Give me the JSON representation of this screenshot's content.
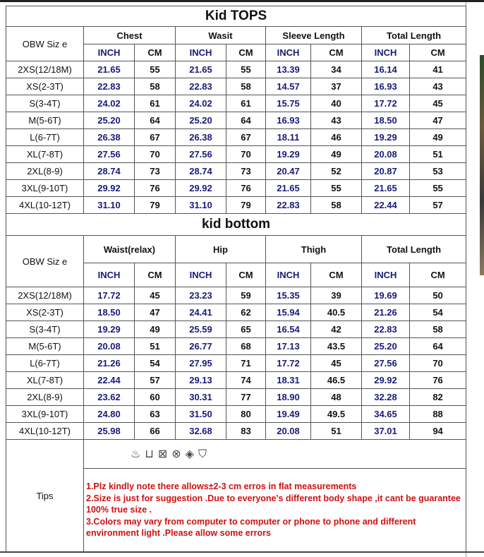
{
  "tops": {
    "title": "Kid TOPS",
    "size_label": "OBW  Siz e",
    "groups": [
      "Chest",
      "Wasit",
      "Sleeve Length",
      "Total Length"
    ],
    "unit_inch": "INCH",
    "unit_cm": "CM",
    "rows": [
      [
        "2XS(12/18M)",
        "21.65",
        "55",
        "21.65",
        "55",
        "13.39",
        "34",
        "16.14",
        "41"
      ],
      [
        "XS(2-3T)",
        "22.83",
        "58",
        "22.83",
        "58",
        "14.57",
        "37",
        "16.93",
        "43"
      ],
      [
        "S(3-4T)",
        "24.02",
        "61",
        "24.02",
        "61",
        "15.75",
        "40",
        "17.72",
        "45"
      ],
      [
        "M(5-6T)",
        "25.20",
        "64",
        "25.20",
        "64",
        "16.93",
        "43",
        "18.50",
        "47"
      ],
      [
        "L(6-7T)",
        "26.38",
        "67",
        "26.38",
        "67",
        "18.11",
        "46",
        "19.29",
        "49"
      ],
      [
        "XL(7-8T)",
        "27.56",
        "70",
        "27.56",
        "70",
        "19.29",
        "49",
        "20.08",
        "51"
      ],
      [
        "2XL(8-9)",
        "28.74",
        "73",
        "28.74",
        "73",
        "20.47",
        "52",
        "20.87",
        "53"
      ],
      [
        "3XL(9-10T)",
        "29.92",
        "76",
        "29.92",
        "76",
        "21.65",
        "55",
        "21.65",
        "55"
      ],
      [
        "4XL(10-12T)",
        "31.10",
        "79",
        "31.10",
        "79",
        "22.83",
        "58",
        "22.44",
        "57"
      ]
    ]
  },
  "bottoms": {
    "title": "kid bottom",
    "size_label": "OBW  Siz e",
    "groups": [
      "Waist(relax)",
      "Hip",
      "Thigh",
      "Total Length"
    ],
    "unit_inch": "INCH",
    "unit_cm": "CM",
    "rows": [
      [
        "2XS(12/18M)",
        "17.72",
        "45",
        "23.23",
        "59",
        "15.35",
        "39",
        "19.69",
        "50"
      ],
      [
        "XS(2-3T)",
        "18.50",
        "47",
        "24.41",
        "62",
        "15.94",
        "40.5",
        "21.26",
        "54"
      ],
      [
        "S(3-4T)",
        "19.29",
        "49",
        "25.59",
        "65",
        "16.54",
        "42",
        "22.83",
        "58"
      ],
      [
        "M(5-6T)",
        "20.08",
        "51",
        "26.77",
        "68",
        "17.13",
        "43.5",
        "25.20",
        "64"
      ],
      [
        "L(6-7T)",
        "21.26",
        "54",
        "27.95",
        "71",
        "17.72",
        "45",
        "27.56",
        "70"
      ],
      [
        "XL(7-8T)",
        "22.44",
        "57",
        "29.13",
        "74",
        "18.31",
        "46.5",
        "29.92",
        "76"
      ],
      [
        "2XL(8-9)",
        "23.62",
        "60",
        "30.31",
        "77",
        "18.90",
        "48",
        "32.28",
        "82"
      ],
      [
        "3XL(9-10T)",
        "24.80",
        "63",
        "31.50",
        "80",
        "19.49",
        "49.5",
        "34.65",
        "88"
      ],
      [
        "4XL(10-12T)",
        "25.98",
        "66",
        "32.68",
        "83",
        "20.08",
        "51",
        "37.01",
        "94"
      ]
    ],
    "care_icons": [
      "hand-wash-icon",
      "wash-tub-icon",
      "no-tumble-dry-icon",
      "no-dry-clean-icon",
      "no-bleach-icon",
      "hang-dry-icon"
    ],
    "tips_label": "Tips",
    "tips": [
      "1.Plz kindly note there allows±2-3 cm erros in flat  measurements",
      "2.Size is just for suggestion .Due to everyone's different body shape ,it cant be guarantee 100% true size .",
      "3.Colors may  vary from computer to computer or phone to phone and different environment light .Please allow some errors"
    ]
  },
  "colors": {
    "inch": "#1a1a7a",
    "tips": "#d01010"
  }
}
